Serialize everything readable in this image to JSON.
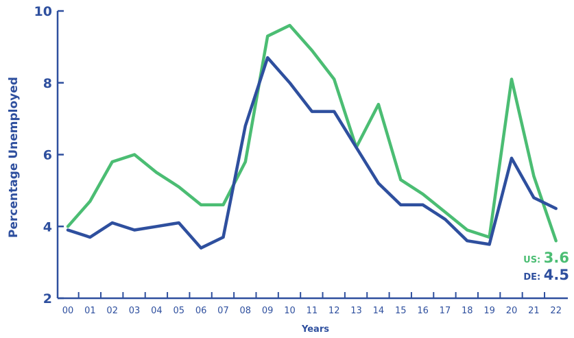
{
  "chart_data": {
    "type": "line",
    "xlabel": "Years",
    "ylabel": "Percentage Unemployed",
    "ylim": [
      2,
      10
    ],
    "yticks": [
      "2",
      "4",
      "6",
      "8",
      "10"
    ],
    "x": [
      "00",
      "01",
      "02",
      "03",
      "04",
      "05",
      "06",
      "07",
      "08",
      "09",
      "10",
      "11",
      "12",
      "13",
      "14",
      "15",
      "16",
      "17",
      "18",
      "19",
      "20",
      "21",
      "22"
    ],
    "grid": false,
    "series": [
      {
        "name": "US",
        "color": "#4bbd73",
        "values": [
          4.0,
          4.7,
          5.8,
          6.0,
          5.5,
          5.1,
          4.6,
          4.6,
          5.8,
          9.3,
          9.6,
          8.9,
          8.1,
          6.2,
          7.4,
          5.3,
          4.9,
          4.4,
          3.9,
          3.7,
          8.1,
          5.4,
          3.6
        ]
      },
      {
        "name": "DE",
        "color": "#2e4f9e",
        "values": [
          3.9,
          3.7,
          4.1,
          3.9,
          4.0,
          4.1,
          3.4,
          3.7,
          6.8,
          8.7,
          8.0,
          7.2,
          7.2,
          6.2,
          5.2,
          4.6,
          4.6,
          4.2,
          3.6,
          3.5,
          5.9,
          4.8,
          4.5
        ]
      }
    ],
    "end_labels": [
      {
        "series": "US",
        "label": "US:",
        "value": "3.6"
      },
      {
        "series": "DE",
        "label": "DE:",
        "value": "4.5"
      }
    ],
    "axis_color": "#2e4f9e"
  }
}
